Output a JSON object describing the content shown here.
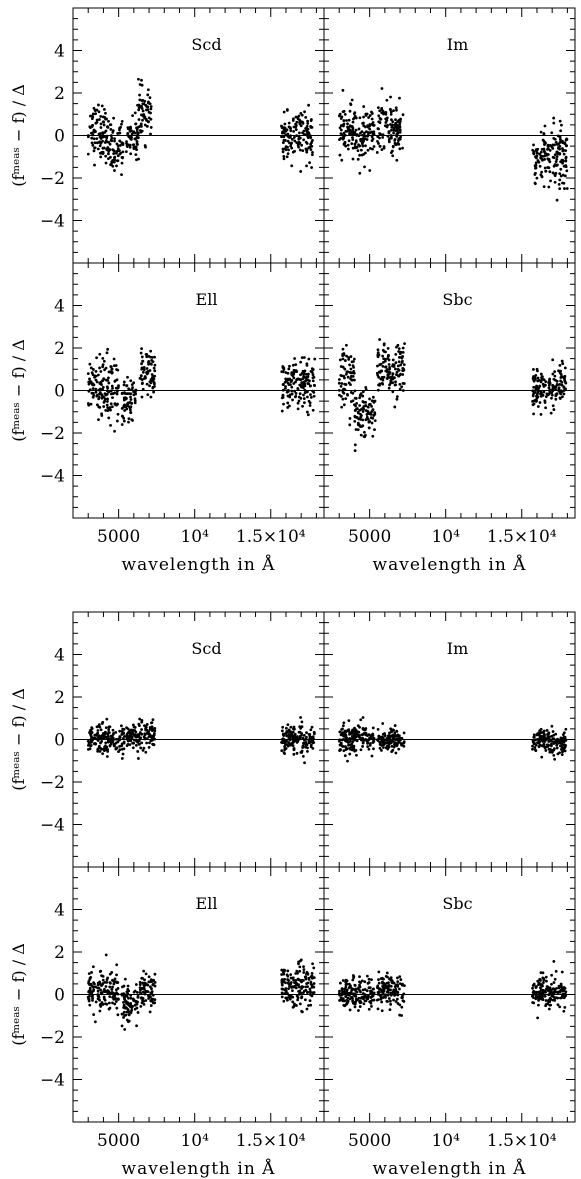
{
  "figure": {
    "ylabel": "(fᵐᵉᵃˢ − f) / Δ",
    "xlabel": "wavelength in Å",
    "x_tick_labels": [
      "5000",
      "10⁴",
      "1.5×10⁴"
    ],
    "y_tick_labels": [
      "4",
      "2",
      "0",
      "−2",
      "−4"
    ]
  },
  "chart_data": [
    {
      "type": "scatter",
      "group": "top",
      "panel": "Scd",
      "xlim": [
        2000,
        18500
      ],
      "ylim": [
        -6,
        6
      ],
      "reference_line_y": 0,
      "x_ticks": [
        5000,
        10000,
        15000
      ],
      "y_ticks": [
        4,
        2,
        0,
        -2,
        -4
      ],
      "points_pattern": "dense cluster 3000-7500 Å, scatter up to about +4 near 6700 Å, sparse cluster 15700-17800 Å",
      "clusters": [
        {
          "x_range": [
            3000,
            4200
          ],
          "y_center": 0.2,
          "y_spread": 1.2
        },
        {
          "x_range": [
            4200,
            5300
          ],
          "y_center": -0.5,
          "y_spread": 1.1
        },
        {
          "x_range": [
            5500,
            6300
          ],
          "y_center": 0.0,
          "y_spread": 0.9
        },
        {
          "x_range": [
            6300,
            7200
          ],
          "y_center": 1.0,
          "y_spread": 1.1
        },
        {
          "x_range": [
            15700,
            17800
          ],
          "y_center": -0.1,
          "y_spread": 1.0
        }
      ]
    },
    {
      "type": "scatter",
      "group": "top",
      "panel": "Im",
      "xlim": [
        2000,
        18500
      ],
      "ylim": [
        -6,
        6
      ],
      "reference_line_y": 0,
      "clusters": [
        {
          "x_range": [
            3000,
            5300
          ],
          "y_center": 0.1,
          "y_spread": 1.2
        },
        {
          "x_range": [
            5500,
            7200
          ],
          "y_center": 0.3,
          "y_spread": 1.1
        },
        {
          "x_range": [
            15700,
            18000
          ],
          "y_center": -1.0,
          "y_spread": 1.3
        }
      ]
    },
    {
      "type": "scatter",
      "group": "top",
      "panel": "Ell",
      "xlim": [
        2000,
        18500
      ],
      "ylim": [
        -6,
        6
      ],
      "reference_line_y": 0,
      "clusters": [
        {
          "x_range": [
            3000,
            5000
          ],
          "y_center": 0.1,
          "y_spread": 1.4
        },
        {
          "x_range": [
            5200,
            6200
          ],
          "y_center": -0.6,
          "y_spread": 1.0
        },
        {
          "x_range": [
            6400,
            7400
          ],
          "y_center": 0.8,
          "y_spread": 1.0
        },
        {
          "x_range": [
            15700,
            17900
          ],
          "y_center": 0.3,
          "y_spread": 1.0
        }
      ]
    },
    {
      "type": "scatter",
      "group": "top",
      "panel": "Sbc",
      "xlim": [
        2000,
        18500
      ],
      "ylim": [
        -6,
        6
      ],
      "reference_line_y": 0,
      "clusters": [
        {
          "x_range": [
            3000,
            4000
          ],
          "y_center": 0.4,
          "y_spread": 1.4
        },
        {
          "x_range": [
            4000,
            5400
          ],
          "y_center": -1.0,
          "y_spread": 1.0
        },
        {
          "x_range": [
            5500,
            7300
          ],
          "y_center": 1.0,
          "y_spread": 1.1
        },
        {
          "x_range": [
            15700,
            17900
          ],
          "y_center": 0.1,
          "y_spread": 0.9
        }
      ]
    },
    {
      "type": "scatter",
      "group": "bottom",
      "panel": "Scd",
      "xlim": [
        2000,
        18500
      ],
      "ylim": [
        -6,
        6
      ],
      "reference_line_y": 0,
      "clusters": [
        {
          "x_range": [
            3000,
            5400
          ],
          "y_center": 0.0,
          "y_spread": 0.7
        },
        {
          "x_range": [
            5500,
            7400
          ],
          "y_center": 0.1,
          "y_spread": 0.6
        },
        {
          "x_range": [
            15700,
            17900
          ],
          "y_center": 0.0,
          "y_spread": 0.6
        }
      ]
    },
    {
      "type": "scatter",
      "group": "bottom",
      "panel": "Im",
      "xlim": [
        2000,
        18500
      ],
      "ylim": [
        -6,
        6
      ],
      "reference_line_y": 0,
      "clusters": [
        {
          "x_range": [
            3000,
            5300
          ],
          "y_center": 0.1,
          "y_spread": 0.6
        },
        {
          "x_range": [
            5500,
            7300
          ],
          "y_center": 0.0,
          "y_spread": 0.5
        },
        {
          "x_range": [
            15700,
            17900
          ],
          "y_center": -0.1,
          "y_spread": 0.5
        }
      ]
    },
    {
      "type": "scatter",
      "group": "bottom",
      "panel": "Ell",
      "xlim": [
        2000,
        18500
      ],
      "ylim": [
        -6,
        6
      ],
      "reference_line_y": 0,
      "clusters": [
        {
          "x_range": [
            3000,
            5000
          ],
          "y_center": 0.1,
          "y_spread": 0.9
        },
        {
          "x_range": [
            5200,
            6300
          ],
          "y_center": -0.4,
          "y_spread": 0.9
        },
        {
          "x_range": [
            6400,
            7400
          ],
          "y_center": 0.2,
          "y_spread": 0.8
        },
        {
          "x_range": [
            15700,
            17900
          ],
          "y_center": 0.4,
          "y_spread": 0.9
        }
      ]
    },
    {
      "type": "scatter",
      "group": "bottom",
      "panel": "Sbc",
      "xlim": [
        2000,
        18500
      ],
      "ylim": [
        -6,
        6
      ],
      "reference_line_y": 0,
      "clusters": [
        {
          "x_range": [
            3000,
            5300
          ],
          "y_center": 0.0,
          "y_spread": 0.7
        },
        {
          "x_range": [
            5500,
            7300
          ],
          "y_center": 0.2,
          "y_spread": 0.7
        },
        {
          "x_range": [
            15700,
            17900
          ],
          "y_center": 0.1,
          "y_spread": 0.7
        }
      ]
    }
  ]
}
